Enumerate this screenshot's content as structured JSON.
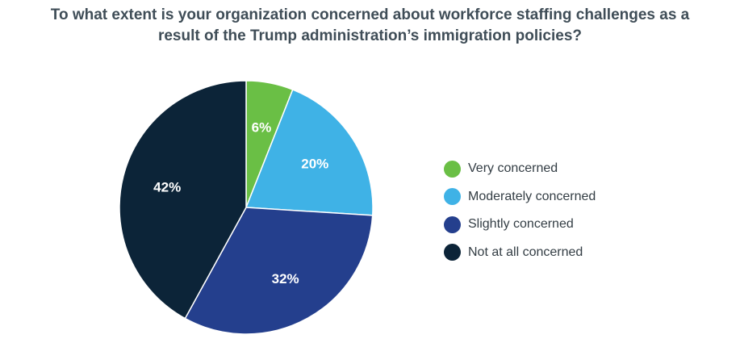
{
  "chart_data": {
    "type": "pie",
    "title_lines": [
      "To what extent is your organization concerned about workforce staffing challenges as a",
      "result of the Trump administration’s immigration policies?"
    ],
    "categories": [
      "Very concerned",
      "Moderately concerned",
      "Slightly concerned",
      "Not at all concerned"
    ],
    "values": [
      6,
      20,
      32,
      42
    ],
    "labels": [
      "6%",
      "20%",
      "32%",
      "42%"
    ],
    "colors": [
      "#6abf45",
      "#3fb2e6",
      "#243f8d",
      "#0c2438"
    ],
    "legend_position": "right"
  }
}
